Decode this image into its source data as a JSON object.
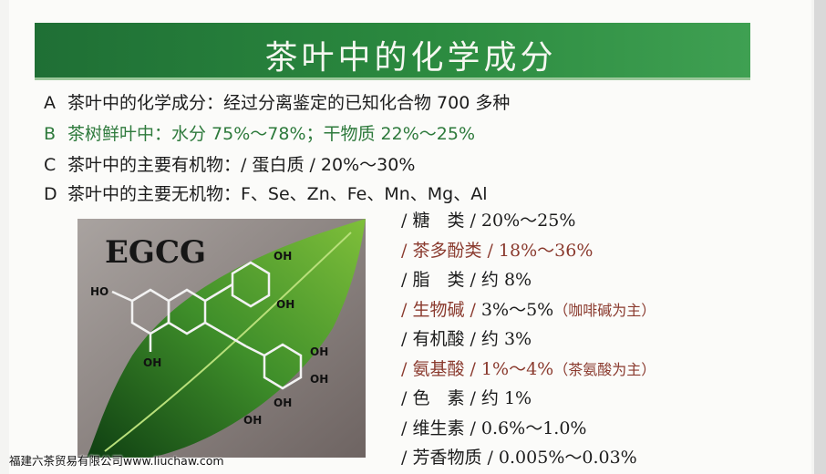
{
  "title": "茶叶中的化学成分",
  "lines": [
    {
      "key": "A",
      "text": "茶叶中的化学成分：经过分离鉴定的已知化合物 700 多种"
    },
    {
      "key": "B",
      "text": "茶树鲜叶中：水分 75%～78%；干物质 22%～25%"
    },
    {
      "key": "C",
      "text": "茶叶中的主要有机物：/ 蛋白质 / 20%～30%"
    },
    {
      "key": "D",
      "text": "茶叶中的主要无机物：F、Se、Zn、Fe、Mn、Mg、Al"
    }
  ],
  "components": [
    {
      "name": "/ 糖　类 / ",
      "value": "20%～25%",
      "note": ""
    },
    {
      "name": "/ 茶多酚类 / ",
      "value": "18%～36%",
      "note": ""
    },
    {
      "name": "/ 脂　类 / ",
      "value": "约 8%",
      "note": ""
    },
    {
      "name": "/ 生物碱 / ",
      "value": "3%～5%",
      "note": "（咖啡碱为主）"
    },
    {
      "name": "/ 有机酸 / ",
      "value": "约 3%",
      "note": ""
    },
    {
      "name": "/ 氨基酸 / ",
      "value": "1%～4%",
      "note": "（茶氨酸为主）"
    },
    {
      "name": "/ 色　素 / ",
      "value": "约 1%",
      "note": ""
    },
    {
      "name": "/ 维生素 / ",
      "value": "0.6%～1.0%",
      "note": ""
    },
    {
      "name": "/ 芳香物质 / ",
      "value": "0.005%～0.03%",
      "note": ""
    }
  ],
  "image": {
    "label": "EGCG",
    "groups": [
      "HO",
      "OH",
      "OH",
      "OH",
      "OH",
      "OH",
      "OH",
      "OH"
    ]
  },
  "watermark": "福建六茶贸易有限公司www.liuchaw.com",
  "colors": {
    "banner": "#2b8a3f",
    "highlight_red": "#8a3a2e",
    "highlight_green": "#2e7a3c"
  }
}
